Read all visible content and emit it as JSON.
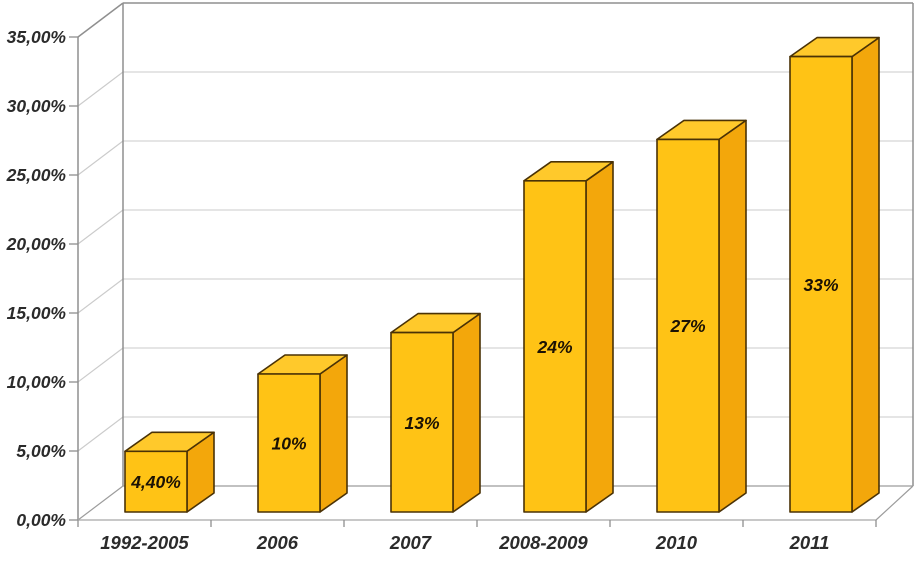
{
  "chart_data": {
    "type": "bar",
    "style": "3d-column",
    "title": "",
    "xlabel": "",
    "ylabel": "",
    "legend_position": "none",
    "grid": true,
    "categories": [
      "1992-2005",
      "2006",
      "2007",
      "2008-2009",
      "2010",
      "2011"
    ],
    "values": [
      4.4,
      10,
      13,
      24,
      27,
      33
    ],
    "data_labels": [
      "4,40%",
      "10%",
      "13%",
      "24%",
      "27%",
      "33%"
    ],
    "y_axis": {
      "min": 0,
      "max": 35,
      "step": 5,
      "unit": "%",
      "tick_labels": [
        "0,00%",
        "5,00%",
        "10,00%",
        "15,00%",
        "20,00%",
        "25,00%",
        "30,00%",
        "35,00%"
      ]
    },
    "colors": {
      "bar_front": "#FFC315",
      "bar_top": "#FFC92B",
      "bar_side": "#F3A70B",
      "bar_outline": "#4A3206",
      "grid_line": "#CBCBCB",
      "wall_edge": "#8F8F8F",
      "floor_edge": "#9C9C9C",
      "axis_line": "#A8A8A8",
      "tick": "#8F8F8F",
      "axis_text": "#2B2B2B",
      "data_label_text": "#1C1204",
      "background": "#FFFFFF"
    }
  }
}
